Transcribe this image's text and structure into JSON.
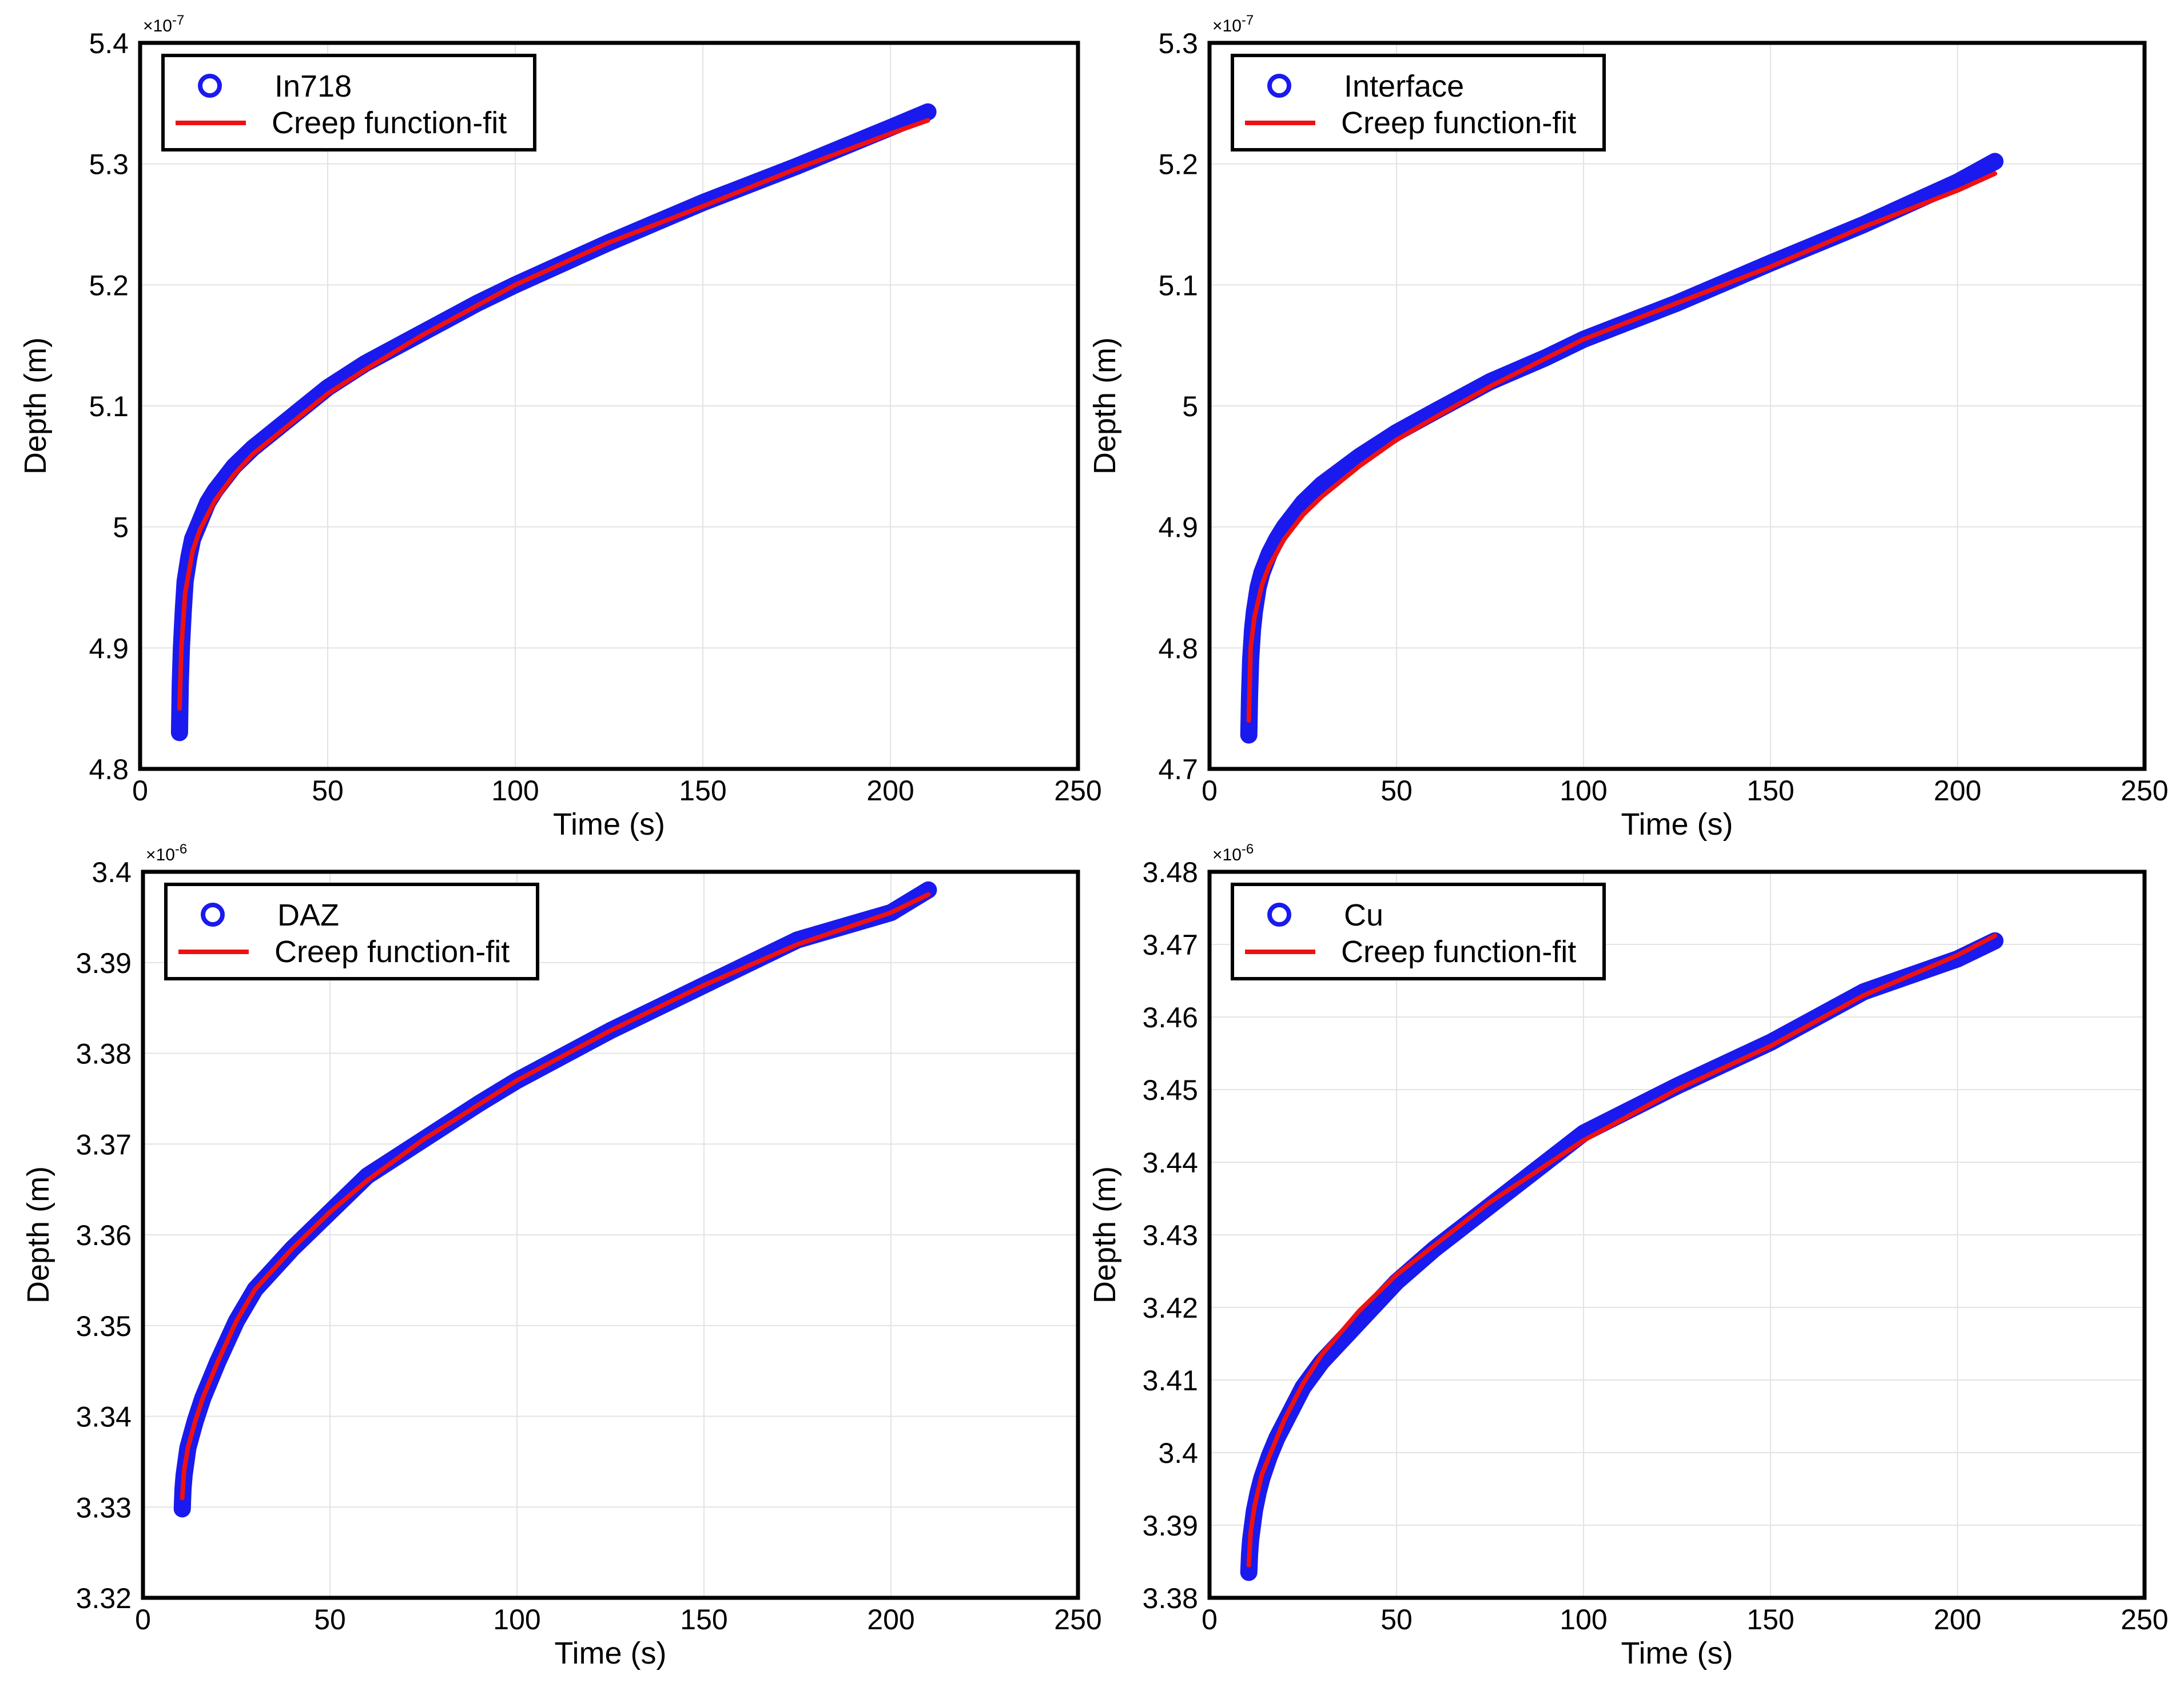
{
  "colors": {
    "data": "#1a1aee",
    "fit": "#ee1111"
  },
  "chart_data": [
    {
      "type": "scatter",
      "name": "panel-in718",
      "xlabel": "Time (s)",
      "ylabel": "Depth (m)",
      "exponent_label": "×10",
      "exponent": "-7",
      "xlim": [
        0,
        250
      ],
      "ylim": [
        4.8,
        5.4
      ],
      "xticks": [
        "0",
        "50",
        "100",
        "150",
        "200",
        "250"
      ],
      "yticks": [
        "4.8",
        "4.9",
        "5",
        "5.1",
        "5.2",
        "5.3",
        "5.4"
      ],
      "grid": true,
      "legend_position": "top-left",
      "series": [
        {
          "name": "In718",
          "kind": "markers",
          "x": [
            10.5,
            10.7,
            11,
            11.5,
            12,
            13,
            14,
            16,
            18,
            20,
            25,
            30,
            40,
            50,
            60,
            75,
            90,
            100,
            125,
            150,
            175,
            200,
            210
          ],
          "y": [
            4.83,
            4.87,
            4.9,
            4.93,
            4.955,
            4.975,
            4.99,
            5.005,
            5.02,
            5.03,
            5.05,
            5.065,
            5.09,
            5.115,
            5.135,
            5.16,
            5.185,
            5.2,
            5.235,
            5.268,
            5.298,
            5.33,
            5.343
          ]
        },
        {
          "name": "Creep function-fit",
          "kind": "line",
          "x": [
            10.5,
            11,
            12,
            14,
            16,
            20,
            25,
            30,
            40,
            50,
            60,
            75,
            100,
            125,
            150,
            175,
            200,
            210
          ],
          "y": [
            4.85,
            4.9,
            4.945,
            4.98,
            4.998,
            5.022,
            5.043,
            5.06,
            5.085,
            5.11,
            5.13,
            5.158,
            5.2,
            5.235,
            5.265,
            5.296,
            5.325,
            5.336
          ]
        }
      ]
    },
    {
      "type": "scatter",
      "name": "panel-interface",
      "xlabel": "Time (s)",
      "ylabel": "Depth (m)",
      "exponent_label": "×10",
      "exponent": "-7",
      "xlim": [
        0,
        250
      ],
      "ylim": [
        4.7,
        5.3
      ],
      "xticks": [
        "0",
        "50",
        "100",
        "150",
        "200",
        "250"
      ],
      "yticks": [
        "4.7",
        "4.8",
        "4.9",
        "5",
        "5.1",
        "5.2",
        "5.3"
      ],
      "grid": true,
      "legend_position": "top-left",
      "series": [
        {
          "name": "Interface",
          "kind": "markers",
          "x": [
            10.5,
            10.7,
            11,
            11.5,
            12,
            13,
            14,
            16,
            18,
            20,
            25,
            30,
            40,
            50,
            60,
            75,
            90,
            100,
            125,
            150,
            175,
            200,
            210
          ],
          "y": [
            4.728,
            4.76,
            4.79,
            4.815,
            4.83,
            4.85,
            4.862,
            4.878,
            4.89,
            4.9,
            4.92,
            4.935,
            4.958,
            4.978,
            4.995,
            5.02,
            5.04,
            5.055,
            5.085,
            5.118,
            5.15,
            5.185,
            5.202
          ]
        },
        {
          "name": "Creep function-fit",
          "kind": "line",
          "x": [
            10.5,
            11,
            12,
            14,
            16,
            20,
            25,
            30,
            40,
            50,
            60,
            75,
            100,
            125,
            150,
            175,
            200,
            210
          ],
          "y": [
            4.74,
            4.8,
            4.825,
            4.852,
            4.868,
            4.89,
            4.91,
            4.925,
            4.95,
            4.972,
            4.99,
            5.016,
            5.055,
            5.085,
            5.115,
            5.148,
            5.178,
            5.192
          ]
        }
      ]
    },
    {
      "type": "scatter",
      "name": "panel-daz",
      "xlabel": "Time (s)",
      "ylabel": "Depth (m)",
      "exponent_label": "×10",
      "exponent": "-6",
      "xlim": [
        0,
        250
      ],
      "ylim": [
        3.32,
        3.4
      ],
      "xticks": [
        "0",
        "50",
        "100",
        "150",
        "200",
        "250"
      ],
      "yticks": [
        "3.32",
        "3.33",
        "3.34",
        "3.35",
        "3.36",
        "3.37",
        "3.38",
        "3.39",
        "3.4"
      ],
      "grid": true,
      "legend_position": "top-left",
      "series": [
        {
          "name": "DAZ",
          "kind": "markers",
          "x": [
            10.5,
            10.7,
            11,
            11.5,
            12,
            13,
            14,
            16,
            18,
            20,
            25,
            30,
            40,
            50,
            60,
            75,
            90,
            100,
            125,
            150,
            175,
            200,
            210
          ],
          "y": [
            3.3298,
            3.332,
            3.3335,
            3.335,
            3.3365,
            3.338,
            3.3395,
            3.342,
            3.344,
            3.346,
            3.3505,
            3.354,
            3.3585,
            3.3625,
            3.3665,
            3.3705,
            3.3745,
            3.377,
            3.3825,
            3.3875,
            3.3925,
            3.3955,
            3.398
          ]
        },
        {
          "name": "Creep function-fit",
          "kind": "line",
          "x": [
            10.5,
            11,
            12,
            14,
            16,
            20,
            25,
            30,
            40,
            50,
            60,
            75,
            100,
            125,
            150,
            175,
            200,
            210
          ],
          "y": [
            3.331,
            3.334,
            3.3365,
            3.3395,
            3.342,
            3.346,
            3.3505,
            3.354,
            3.3585,
            3.3625,
            3.366,
            3.3705,
            3.377,
            3.3825,
            3.3875,
            3.392,
            3.3955,
            3.3975
          ]
        }
      ]
    },
    {
      "type": "scatter",
      "name": "panel-cu",
      "xlabel": "Time (s)",
      "ylabel": "Depth (m)",
      "exponent_label": "×10",
      "exponent": "-6",
      "xlim": [
        0,
        250
      ],
      "ylim": [
        3.38,
        3.48
      ],
      "xticks": [
        "0",
        "50",
        "100",
        "150",
        "200",
        "250"
      ],
      "yticks": [
        "3.38",
        "3.39",
        "3.4",
        "3.41",
        "3.42",
        "3.43",
        "3.44",
        "3.45",
        "3.46",
        "3.47",
        "3.48"
      ],
      "grid": true,
      "legend_position": "top-left",
      "series": [
        {
          "name": "Cu",
          "kind": "markers",
          "x": [
            10.5,
            10.7,
            11,
            11.5,
            12,
            13,
            14,
            16,
            18,
            20,
            25,
            30,
            40,
            50,
            60,
            75,
            90,
            100,
            125,
            150,
            175,
            200,
            210
          ],
          "y": [
            3.3835,
            3.386,
            3.388,
            3.39,
            3.392,
            3.3945,
            3.3965,
            3.3995,
            3.402,
            3.404,
            3.409,
            3.4125,
            3.418,
            3.4235,
            3.428,
            3.434,
            3.44,
            3.444,
            3.4505,
            3.4565,
            3.4635,
            3.468,
            3.4705
          ]
        },
        {
          "name": "Creep function-fit",
          "kind": "line",
          "x": [
            10.5,
            11,
            12,
            14,
            16,
            20,
            25,
            30,
            40,
            50,
            60,
            75,
            100,
            125,
            150,
            175,
            200,
            210
          ],
          "y": [
            3.3845,
            3.389,
            3.3925,
            3.397,
            3.3995,
            3.4045,
            3.4095,
            3.4135,
            3.4195,
            3.4245,
            3.4285,
            3.4345,
            3.443,
            3.45,
            3.456,
            3.463,
            3.4685,
            3.4712
          ]
        }
      ]
    }
  ]
}
